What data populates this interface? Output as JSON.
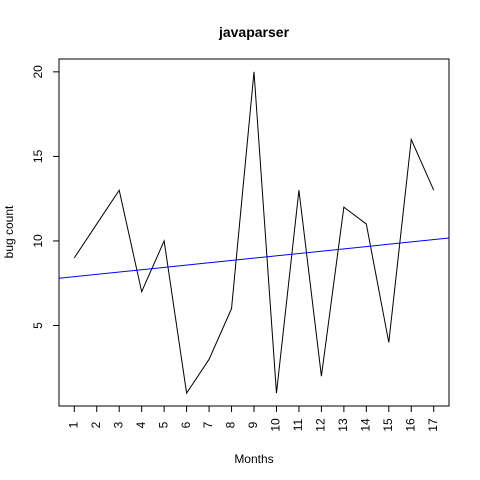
{
  "chart_data": {
    "type": "line",
    "title": "javaparser",
    "xlabel": "Months",
    "ylabel": "bug count",
    "x": [
      1,
      2,
      3,
      4,
      5,
      6,
      7,
      8,
      9,
      10,
      11,
      12,
      13,
      14,
      15,
      16,
      17
    ],
    "x_tick_labels": [
      "1",
      "2",
      "3",
      "4",
      "5",
      "6",
      "7",
      "8",
      "9",
      "10",
      "11",
      "12",
      "13",
      "14",
      "15",
      "16",
      "17"
    ],
    "y_ticks": [
      5,
      10,
      15,
      20
    ],
    "y_tick_labels": [
      "5",
      "10",
      "15",
      "20"
    ],
    "xlim": [
      0.32,
      17.68
    ],
    "ylim": [
      0.24,
      20.76
    ],
    "grid": false,
    "legend": "none",
    "series": [
      {
        "type": "line",
        "color": "#000000",
        "values": [
          9,
          11,
          13,
          7,
          10,
          1,
          3,
          6,
          20,
          1,
          13,
          2,
          12,
          11,
          4,
          16,
          13
        ]
      },
      {
        "type": "trend-line",
        "color": "#0000ff",
        "intercept": 7.75,
        "slope": 0.137
      }
    ]
  }
}
